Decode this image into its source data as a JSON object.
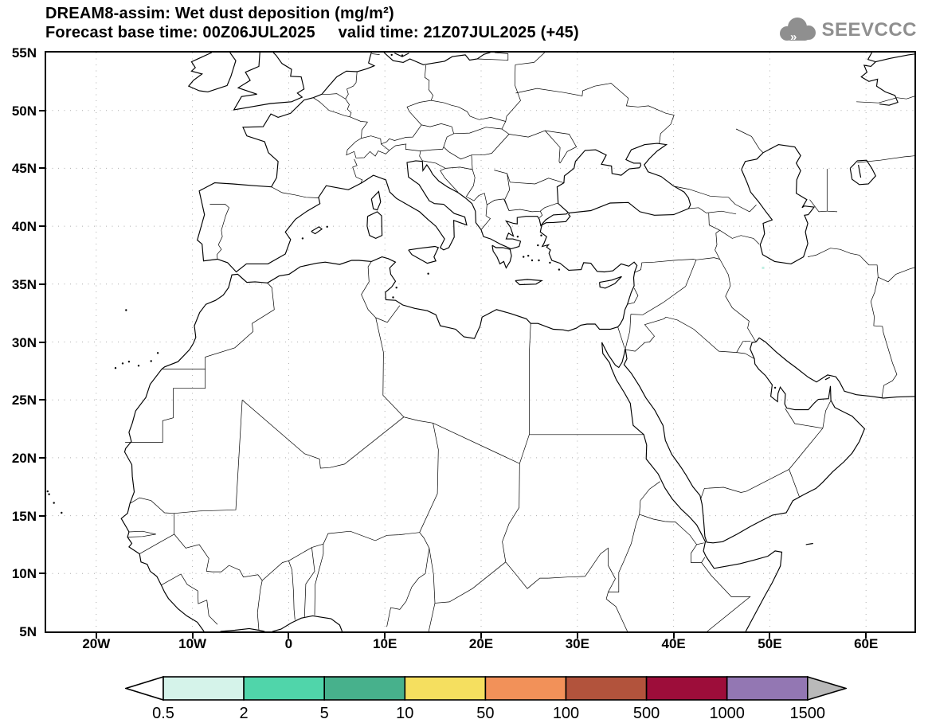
{
  "header": {
    "line1": "DREAM8-assim: Wet dust deposition (mg/m²)",
    "line2": "Forecast base time: 00Z06JUL2025     valid time: 21Z07JUL2025 (+45)"
  },
  "logo": {
    "text": "SEEVCCC",
    "icon": "cloud-icon",
    "color": "#8f8f8f"
  },
  "chart_data": {
    "type": "map-contour",
    "title": "DREAM8-assim: Wet dust deposition (mg/m²)",
    "variable": "Wet dust deposition",
    "units": "mg/m²",
    "model": "DREAM8-assim",
    "forecast_base_time": "00Z06JUL2025",
    "valid_time": "21Z07JUL2025",
    "lead": "+45",
    "map_extent": {
      "lon_min": -25.2,
      "lon_max": 65.2,
      "lat_min": 5,
      "lat_max": 55
    },
    "grid": "dotted graticule, lon every 10 deg, lat every 5 deg",
    "x_ticks": [
      {
        "label": "20W",
        "lon": -20
      },
      {
        "label": "10W",
        "lon": -10
      },
      {
        "label": "0",
        "lon": 0
      },
      {
        "label": "10E",
        "lon": 10
      },
      {
        "label": "20E",
        "lon": 20
      },
      {
        "label": "30E",
        "lon": 30
      },
      {
        "label": "40E",
        "lon": 40
      },
      {
        "label": "50E",
        "lon": 50
      },
      {
        "label": "60E",
        "lon": 60
      }
    ],
    "y_ticks": [
      {
        "label": "55N",
        "lat": 55
      },
      {
        "label": "50N",
        "lat": 50
      },
      {
        "label": "45N",
        "lat": 45
      },
      {
        "label": "40N",
        "lat": 40
      },
      {
        "label": "35N",
        "lat": 35
      },
      {
        "label": "30N",
        "lat": 30
      },
      {
        "label": "25N",
        "lat": 25
      },
      {
        "label": "20N",
        "lat": 20
      },
      {
        "label": "15N",
        "lat": 15
      },
      {
        "label": "10N",
        "lat": 10
      },
      {
        "label": "5N",
        "lat": 5
      }
    ],
    "colorbar": {
      "levels": [
        "0.5",
        "2",
        "5",
        "10",
        "50",
        "100",
        "500",
        "1000",
        "1500"
      ],
      "segment_colors": [
        "#d5f3ea",
        "#50d5aa",
        "#47b18c",
        "#f5df5f",
        "#f29159",
        "#b2533c",
        "#9d0d3a",
        "#9377b3"
      ],
      "under_color": "#ffffff",
      "over_color": "#b9b9b9",
      "outline_color": "#000000"
    },
    "deposition_features": [
      {
        "lon": 49.3,
        "lat": 36.4,
        "category": "0.5-2",
        "color": "#bfeee2"
      }
    ]
  }
}
